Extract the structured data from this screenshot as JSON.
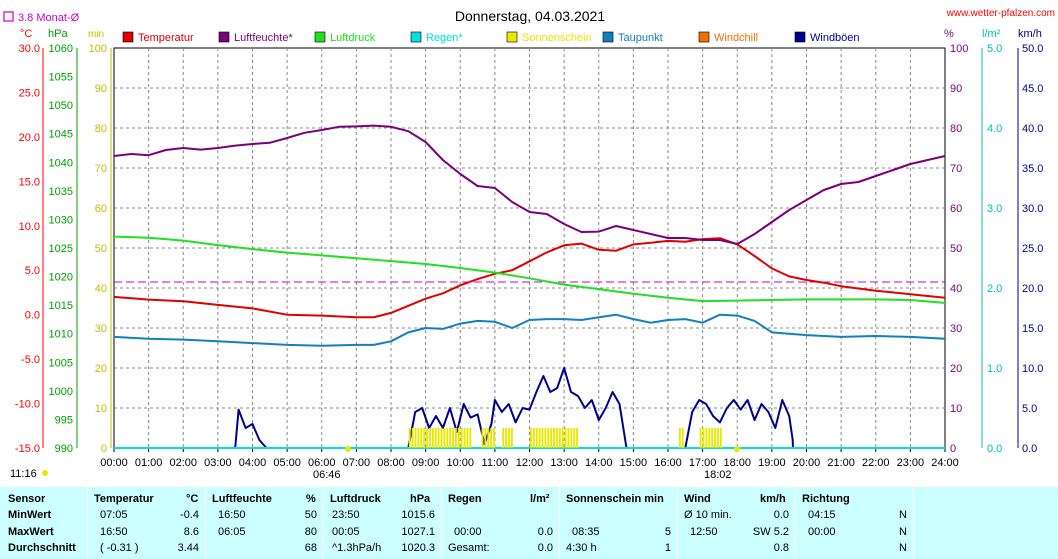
{
  "header": {
    "title": "Donnerstag, 04.03.2021",
    "site": "www.wetter-pfalzen.com",
    "rain_legend": "3.8 Monat-Ø",
    "time_stamp": "11:16",
    "sunrise": "06:46",
    "sunset": "18:02"
  },
  "axis_units": {
    "left_temp": "°C",
    "left_press": "hPa",
    "left_sun": "min",
    "right_hum": "%",
    "right_rain": "l/m²",
    "right_wind": "km/h"
  },
  "legend": [
    {
      "label": "Temperatur",
      "color": "#e00000"
    },
    {
      "label": "Luftfeuchte*",
      "color": "#7a007a"
    },
    {
      "label": "Luftdruck",
      "color": "#20e020"
    },
    {
      "label": "Regen*",
      "color": "#00e0e0"
    },
    {
      "label": "Sonnenschein",
      "color": "#e8e800"
    },
    {
      "label": "Taupunkt",
      "color": "#1080c0"
    },
    {
      "label": "Windchill",
      "color": "#f07000"
    },
    {
      "label": "Windböen",
      "color": "#000090"
    }
  ],
  "chart_data": {
    "type": "line",
    "title": "Donnerstag, 04.03.2021",
    "x_ticks": [
      "00:00",
      "01:00",
      "02:00",
      "03:00",
      "04:00",
      "05:00",
      "06:00",
      "07:00",
      "08:00",
      "09:00",
      "10:00",
      "11:00",
      "12:00",
      "13:00",
      "14:00",
      "15:00",
      "16:00",
      "17:00",
      "18:00",
      "19:00",
      "20:00",
      "21:00",
      "22:00",
      "23:00",
      "24:00"
    ],
    "axes": {
      "temperature": {
        "unit": "°C",
        "range": [
          -15,
          30
        ],
        "ticks": [
          "30.0",
          "25.0",
          "20.0",
          "15.0",
          "10.0",
          "5.0",
          "0.0",
          "-5.0",
          "-10.0",
          "-15.0"
        ]
      },
      "pressure": {
        "unit": "hPa",
        "range": [
          990,
          1060
        ],
        "ticks": [
          "1060",
          "1055",
          "1050",
          "1045",
          "1040",
          "1035",
          "1030",
          "1025",
          "1020",
          "1015",
          "1010",
          "1005",
          "1000",
          "995",
          "990"
        ]
      },
      "sunshine": {
        "unit": "min",
        "range": [
          0,
          100
        ],
        "ticks": [
          "100",
          "90",
          "80",
          "70",
          "60",
          "50",
          "40",
          "30",
          "20",
          "10",
          "0"
        ]
      },
      "humidity": {
        "unit": "%",
        "range": [
          0,
          100
        ],
        "ticks": [
          "100",
          "90",
          "80",
          "70",
          "60",
          "50",
          "40",
          "30",
          "20",
          "10",
          "0"
        ]
      },
      "rain": {
        "unit": "l/m²",
        "range": [
          0,
          5
        ],
        "ticks": [
          "5.0",
          "4.0",
          "3.0",
          "2.0",
          "1.0",
          "0.0"
        ]
      },
      "wind": {
        "unit": "km/h",
        "range": [
          0,
          50
        ],
        "ticks": [
          "50.0",
          "45.0",
          "40.0",
          "35.0",
          "30.0",
          "25.0",
          "20.0",
          "15.0",
          "10.0",
          "5.0",
          "0.0"
        ]
      }
    },
    "rain_month_avg": 3.8,
    "series": [
      {
        "name": "Temperatur",
        "axis": "temperature",
        "color": "#e00000",
        "x": [
          0,
          1,
          2,
          3,
          4,
          5,
          6,
          7,
          7.5,
          8,
          8.5,
          9,
          9.5,
          10,
          10.5,
          11,
          11.5,
          12,
          12.5,
          13,
          13.5,
          14,
          14.5,
          15,
          15.5,
          16,
          16.5,
          17,
          17.5,
          18,
          18.5,
          19,
          19.5,
          20,
          20.5,
          21,
          22,
          23,
          24
        ],
        "y": [
          2.0,
          1.7,
          1.5,
          1.1,
          0.7,
          0.0,
          -0.1,
          -0.3,
          -0.3,
          0.2,
          1.0,
          1.8,
          2.4,
          3.3,
          4.0,
          4.6,
          5.0,
          6.0,
          7.0,
          7.8,
          8.0,
          7.3,
          7.2,
          7.9,
          8.1,
          8.3,
          8.2,
          8.5,
          8.6,
          7.9,
          6.6,
          5.2,
          4.3,
          3.9,
          3.6,
          3.2,
          2.7,
          2.3,
          1.9
        ]
      },
      {
        "name": "Luftfeuchte*",
        "axis": "humidity",
        "color": "#7a007a",
        "x": [
          0,
          0.5,
          1,
          1.5,
          2,
          2.5,
          3,
          3.5,
          4,
          4.5,
          5,
          5.5,
          6,
          6.5,
          7,
          7.5,
          8,
          8.5,
          9,
          9.5,
          10,
          10.5,
          11,
          11.5,
          12,
          12.5,
          13,
          13.5,
          14,
          14.5,
          15,
          15.5,
          16,
          16.5,
          17,
          17.5,
          18,
          18.5,
          19,
          19.5,
          20,
          20.5,
          21,
          21.5,
          22,
          22.5,
          23,
          23.5,
          24
        ],
        "y": [
          73,
          73.5,
          73.2,
          74.5,
          75,
          74.6,
          75,
          75.6,
          76,
          76.3,
          77.5,
          78.8,
          79.5,
          80.3,
          80.4,
          80.6,
          80.3,
          79.2,
          76.5,
          72,
          68.5,
          65.5,
          65,
          61.5,
          59,
          58.5,
          56,
          54,
          54.1,
          55.5,
          54.5,
          53.5,
          52.5,
          52.5,
          52,
          52,
          51,
          53.5,
          56.5,
          59.5,
          62,
          64.5,
          66,
          66.5,
          68,
          69.5,
          71,
          72,
          73
        ]
      },
      {
        "name": "Luftdruck",
        "axis": "pressure",
        "color": "#20e020",
        "x": [
          0,
          1,
          2,
          3,
          4,
          5,
          6,
          7,
          8,
          9,
          10,
          11,
          12,
          13,
          14,
          15,
          16,
          17,
          18,
          19,
          20,
          21,
          22,
          23,
          24
        ],
        "y": [
          1027.0,
          1026.8,
          1026.3,
          1025.5,
          1024.8,
          1024.2,
          1023.7,
          1023.2,
          1022.7,
          1022.2,
          1021.5,
          1020.7,
          1019.7,
          1018.6,
          1017.8,
          1017.0,
          1016.3,
          1015.7,
          1015.8,
          1015.9,
          1016.0,
          1016.0,
          1016.0,
          1015.9,
          1015.4
        ]
      },
      {
        "name": "Taupunkt",
        "axis": "temperature",
        "color": "#1080c0",
        "x": [
          0,
          1,
          2,
          3,
          4,
          5,
          6,
          7,
          7.5,
          8,
          8.5,
          9,
          9.5,
          10,
          10.5,
          11,
          11.5,
          12,
          12.5,
          13,
          13.5,
          14,
          14.5,
          15,
          15.5,
          16,
          16.5,
          17,
          17.5,
          18,
          18.5,
          19,
          20,
          21,
          22,
          23,
          24
        ],
        "y": [
          -2.5,
          -2.7,
          -2.8,
          -3.0,
          -3.2,
          -3.4,
          -3.5,
          -3.4,
          -3.4,
          -3.0,
          -2.0,
          -1.5,
          -1.6,
          -1.0,
          -0.7,
          -0.8,
          -1.5,
          -0.6,
          -0.5,
          -0.5,
          -0.6,
          -0.3,
          0.0,
          -0.5,
          -0.9,
          -0.6,
          -0.5,
          -0.9,
          0.0,
          -0.1,
          -0.7,
          -2.0,
          -2.3,
          -2.5,
          -2.4,
          -2.5,
          -2.7
        ]
      },
      {
        "name": "Windböen",
        "axis": "wind",
        "color": "#000090",
        "x": [
          0,
          3.5,
          3.6,
          3.8,
          4.0,
          4.2,
          4.4,
          4.41,
          8.5,
          8.7,
          8.9,
          9.1,
          9.3,
          9.5,
          9.7,
          9.9,
          10.1,
          10.3,
          10.5,
          10.7,
          10.9,
          11.0,
          11.2,
          11.4,
          11.6,
          11.8,
          12.0,
          12.2,
          12.4,
          12.6,
          12.8,
          13.0,
          13.2,
          13.4,
          13.6,
          13.8,
          14.0,
          14.2,
          14.4,
          14.6,
          14.8,
          14.81,
          16.5,
          16.7,
          16.9,
          17.1,
          17.3,
          17.5,
          17.7,
          17.9,
          18.1,
          18.3,
          18.5,
          18.7,
          18.9,
          19.1,
          19.3,
          19.5,
          19.6,
          19.61,
          24
        ],
        "y": [
          0,
          0,
          4.8,
          2.5,
          3.0,
          1.0,
          0.0,
          0,
          0,
          4.5,
          5.0,
          2.5,
          4.0,
          2.5,
          5.0,
          2.0,
          5.5,
          3.8,
          4.2,
          0.5,
          3.0,
          6.0,
          4.5,
          5.5,
          3.2,
          5.0,
          4.8,
          7.0,
          9.0,
          7.0,
          7.5,
          10.0,
          7.0,
          6.5,
          5.0,
          6.0,
          3.5,
          5.0,
          7.0,
          5.5,
          0.0,
          0,
          0,
          4.5,
          6.0,
          5.5,
          4.0,
          3.2,
          5.0,
          6.0,
          4.8,
          6.0,
          3.5,
          5.5,
          4.5,
          2.5,
          6.0,
          4.0,
          1.0,
          0,
          0
        ]
      },
      {
        "name": "Regen*",
        "axis": "rain",
        "color": "#00e0e0",
        "x": [
          0,
          24
        ],
        "y": [
          0,
          0
        ]
      },
      {
        "name": "Sonnenschein",
        "axis": "sunshine",
        "color": "#e8e800",
        "type": "bar",
        "intervals": [
          [
            8.5,
            10.3
          ],
          [
            10.6,
            11.0
          ],
          [
            11.2,
            11.5
          ],
          [
            12.0,
            13.4
          ],
          [
            16.3,
            16.4
          ],
          [
            16.9,
            17.5
          ]
        ],
        "value": 5
      }
    ],
    "reference_lines": [
      {
        "axis": "humidity",
        "value": 41.5,
        "color": "#cc00cc",
        "style": "dashed"
      }
    ]
  },
  "stats": {
    "headers": {
      "sensor": "Sensor",
      "temp": "Temperatur",
      "temp_unit": "°C",
      "hum": "Luftfeuchte",
      "hum_unit": "%",
      "press": "Luftdruck",
      "press_unit": "hPa",
      "rain": "Regen",
      "rain_unit": "l/m²",
      "sun": "Sonnenschein min",
      "wind": "Wind",
      "wind_unit": "km/h",
      "dir": "Richtung"
    },
    "rows": [
      {
        "label": "MinWert",
        "temp_t": "07:05",
        "temp_v": "-0.4",
        "hum_t": "16:50",
        "hum_v": "50",
        "press_t": "23:50",
        "press_v": "1015.6",
        "rain_t": "",
        "rain_v": "",
        "sun_t": "",
        "sun_v": "",
        "wind_t": "Ø 10 min.",
        "wind_v": "0.0",
        "dir_t": "04:15",
        "dir_v": "N"
      },
      {
        "label": "MaxWert",
        "temp_t": "16:50",
        "temp_v": "8.6",
        "hum_t": "06:05",
        "hum_v": "80",
        "press_t": "00:05",
        "press_v": "1027.1",
        "rain_t": "00:00",
        "rain_v": "0.0",
        "sun_t": "08:35",
        "sun_v": "5",
        "wind_t": "12:50",
        "wind_v": "SW 5.2",
        "dir_t": "00:00",
        "dir_v": "N"
      },
      {
        "label": "Durchschnitt",
        "temp_t": "( -0.31 )",
        "temp_v": "3.44",
        "hum_t": "",
        "hum_v": "68",
        "press_t": "^1.3hPa/h",
        "press_v": "1020.3",
        "rain_t": "Gesamt:",
        "rain_v": "0.0",
        "sun_t": "4:30 h",
        "sun_v": "1",
        "wind_t": "",
        "wind_v": "0.8",
        "dir_t": "",
        "dir_v": "N"
      }
    ]
  }
}
